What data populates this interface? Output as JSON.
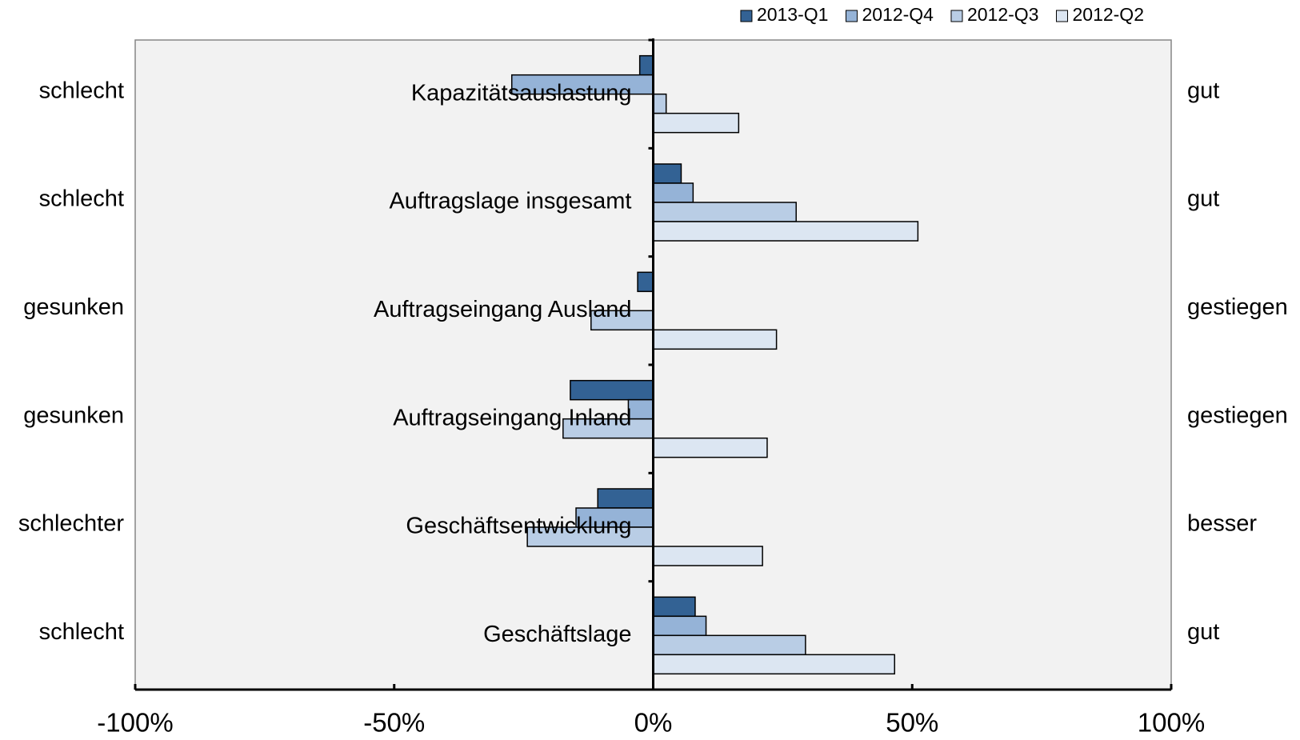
{
  "chart_data": {
    "type": "hbar",
    "categories": [
      "Kapazitätsauslastung",
      "Auftragslage insgesamt",
      "Auftragseingang Ausland",
      "Auftragseingang Inland",
      "Geschäftsentwicklung",
      "Geschäftslage"
    ],
    "left_labels": [
      "schlecht",
      "schlecht",
      "gesunken",
      "gesunken",
      "schlechter",
      "schlecht"
    ],
    "right_labels": [
      "gut",
      "gut",
      "gestiegen",
      "gestiegen",
      "besser",
      "gut"
    ],
    "series": [
      {
        "name": "2013-Q1",
        "color": "#336294",
        "values": [
          -2.6,
          5.4,
          -3,
          -16,
          -10.7,
          8.1
        ]
      },
      {
        "name": "2012-Q4",
        "color": "#95b3d7",
        "values": [
          -27.3,
          7.7,
          0,
          -4.8,
          -14.9,
          10.2
        ]
      },
      {
        "name": "2012-Q3",
        "color": "#b9cde5",
        "values": [
          2.5,
          27.6,
          -12,
          -17.4,
          -24.3,
          29.4
        ]
      },
      {
        "name": "2012-Q2",
        "color": "#dce6f2",
        "values": [
          16.5,
          51.1,
          23.8,
          22,
          21.1,
          46.6
        ]
      }
    ],
    "xlim": [
      -100,
      100
    ],
    "xticks": [
      {
        "value": -100,
        "label": "-100%"
      },
      {
        "value": -50,
        "label": "-50%"
      },
      {
        "value": 0,
        "label": "0%"
      },
      {
        "value": 50,
        "label": "50%"
      },
      {
        "value": 100,
        "label": "100%"
      }
    ],
    "legend": "top-right"
  }
}
